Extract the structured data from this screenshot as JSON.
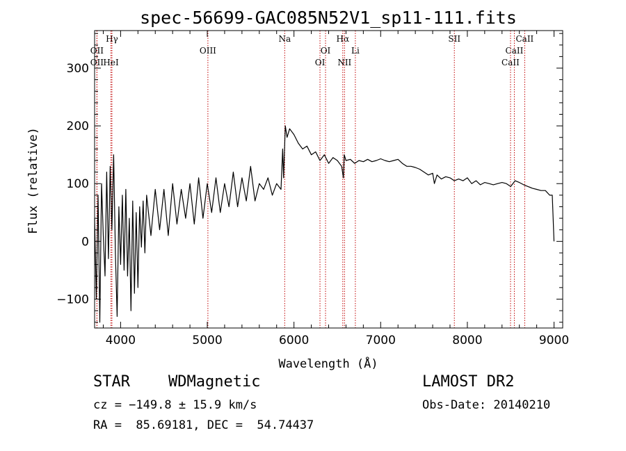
{
  "chart_data": {
    "type": "line",
    "title": "spec-56699-GAC085N52V1_sp11-111.fits",
    "xlabel": "Wavelength (Å)",
    "ylabel": "Flux (relative)",
    "xlim": [
      3700,
      9100
    ],
    "ylim": [
      -150,
      365
    ],
    "xticks": [
      4000,
      5000,
      6000,
      7000,
      8000,
      9000
    ],
    "yticks": [
      -100,
      0,
      100,
      200,
      300
    ],
    "grid": false,
    "series": [
      {
        "x": [
          3700,
          3720,
          3740,
          3760,
          3780,
          3800,
          3820,
          3840,
          3860,
          3880,
          3900,
          3920,
          3940,
          3960,
          3980,
          4000,
          4020,
          4040,
          4060,
          4080,
          4100,
          4120,
          4140,
          4160,
          4180,
          4200,
          4220,
          4240,
          4260,
          4280,
          4300,
          4350,
          4400,
          4450,
          4500,
          4550,
          4600,
          4650,
          4700,
          4750,
          4800,
          4850,
          4900,
          4950,
          5000,
          5050,
          5100,
          5150,
          5200,
          5250,
          5300,
          5350,
          5400,
          5450,
          5500,
          5550,
          5600,
          5650,
          5700,
          5750,
          5800,
          5850,
          5870,
          5880,
          5900,
          5920,
          5950,
          6000,
          6050,
          6100,
          6150,
          6200,
          6250,
          6300,
          6350,
          6400,
          6450,
          6500,
          6550,
          6570,
          6580,
          6600,
          6650,
          6700,
          6750,
          6800,
          6850,
          6900,
          6950,
          7000,
          7050,
          7100,
          7150,
          7200,
          7250,
          7300,
          7350,
          7400,
          7450,
          7500,
          7550,
          7600,
          7620,
          7650,
          7700,
          7750,
          7800,
          7850,
          7900,
          7950,
          8000,
          8050,
          8100,
          8150,
          8200,
          8250,
          8300,
          8350,
          8400,
          8450,
          8500,
          8550,
          8600,
          8650,
          8700,
          8750,
          8800,
          8850,
          8900,
          8950,
          8980,
          9000
        ],
        "y": [
          40,
          -100,
          80,
          -140,
          100,
          10,
          -60,
          120,
          -30,
          130,
          20,
          150,
          -20,
          -130,
          60,
          -40,
          80,
          -50,
          90,
          -60,
          40,
          -120,
          70,
          -90,
          50,
          -80,
          60,
          -10,
          70,
          -20,
          80,
          10,
          90,
          20,
          90,
          10,
          100,
          30,
          90,
          40,
          100,
          30,
          110,
          40,
          100,
          50,
          110,
          50,
          100,
          60,
          120,
          60,
          110,
          70,
          130,
          70,
          100,
          90,
          110,
          80,
          100,
          90,
          160,
          110,
          200,
          180,
          195,
          185,
          170,
          160,
          165,
          150,
          155,
          140,
          150,
          135,
          145,
          140,
          130,
          110,
          150,
          140,
          142,
          135,
          140,
          138,
          142,
          138,
          140,
          143,
          140,
          138,
          140,
          142,
          135,
          130,
          130,
          128,
          125,
          120,
          115,
          118,
          100,
          115,
          108,
          112,
          110,
          105,
          108,
          105,
          110,
          100,
          105,
          98,
          102,
          100,
          98,
          100,
          102,
          100,
          95,
          105,
          102,
          98,
          95,
          92,
          90,
          88,
          88,
          80,
          80,
          0
        ]
      }
    ],
    "spectral_lines": [
      {
        "label": "Hγ",
        "x": 3900,
        "row": 0
      },
      {
        "label": "OII",
        "x": 3727,
        "row": 1
      },
      {
        "label": "OII",
        "x": 3727,
        "row": 2
      },
      {
        "label": "HeI",
        "x": 3889,
        "row": 2
      },
      {
        "label": "OIII",
        "x": 5007,
        "row": 1
      },
      {
        "label": "Na",
        "x": 5893,
        "row": 0
      },
      {
        "label": "OI",
        "x": 6364,
        "row": 1
      },
      {
        "label": "OI",
        "x": 6300,
        "row": 2
      },
      {
        "label": "Hα",
        "x": 6563,
        "row": 0
      },
      {
        "label": "NII",
        "x": 6583,
        "row": 2
      },
      {
        "label": "Li",
        "x": 6708,
        "row": 1
      },
      {
        "label": "SII",
        "x": 7850,
        "row": 0
      },
      {
        "label": "CaII",
        "x": 8662,
        "row": 0
      },
      {
        "label": "CaII",
        "x": 8542,
        "row": 1
      },
      {
        "label": "CaII",
        "x": 8498,
        "row": 2
      }
    ],
    "colors": {
      "spectrum": "#000000",
      "spectral_line": "#c00000"
    }
  },
  "info": {
    "class": "STAR",
    "subclass": "WDMagnetic",
    "survey": "LAMOST DR2",
    "cz": "cz = −149.8 ± 15.9 km/s",
    "obs_date": "Obs-Date: 20140210",
    "coords": "RA =  85.69181, DEC =  54.74437"
  }
}
